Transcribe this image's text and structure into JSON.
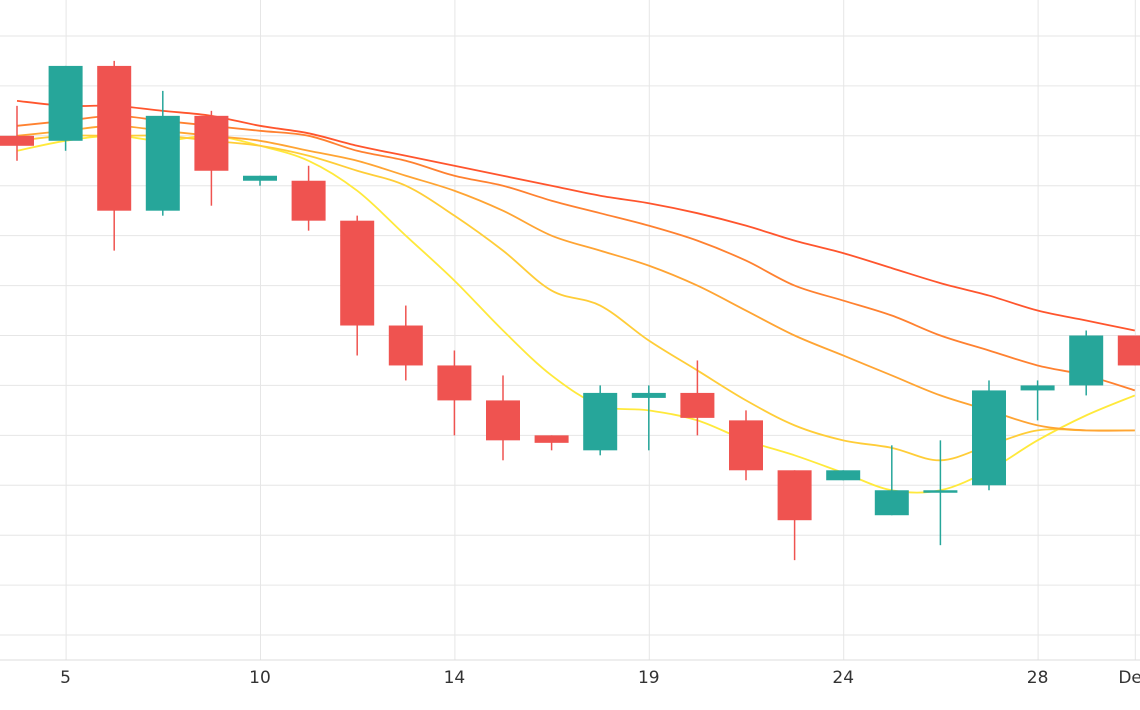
{
  "chart_data": {
    "type": "candlestick",
    "title": "",
    "xlabel": "",
    "ylabel": "",
    "x_tick_labels": [
      "5",
      "10",
      "14",
      "19",
      "24",
      "28",
      "Dec"
    ],
    "x_tick_index": [
      1,
      5,
      9,
      13,
      17,
      21,
      23
    ],
    "grid": true,
    "ylim": [
      0,
      13
    ],
    "y_gridlines": [
      0.5,
      1.5,
      2.5,
      3.5,
      4.5,
      5.5,
      6.5,
      7.5,
      8.5,
      9.5,
      10.5,
      11.5,
      12.5
    ],
    "candles": [
      {
        "o": 10.5,
        "h": 11.1,
        "l": 10.0,
        "c": 10.3
      },
      {
        "o": 10.4,
        "h": 11.9,
        "l": 10.2,
        "c": 11.9
      },
      {
        "o": 11.9,
        "h": 12.0,
        "l": 8.2,
        "c": 9.0
      },
      {
        "o": 9.0,
        "h": 11.4,
        "l": 8.9,
        "c": 10.9
      },
      {
        "o": 10.9,
        "h": 11.0,
        "l": 9.1,
        "c": 9.8
      },
      {
        "o": 9.6,
        "h": 9.7,
        "l": 9.5,
        "c": 9.7
      },
      {
        "o": 9.6,
        "h": 9.9,
        "l": 8.6,
        "c": 8.8
      },
      {
        "o": 8.8,
        "h": 8.9,
        "l": 6.1,
        "c": 6.7
      },
      {
        "o": 6.7,
        "h": 7.1,
        "l": 5.6,
        "c": 5.9
      },
      {
        "o": 5.9,
        "h": 6.2,
        "l": 4.5,
        "c": 5.2
      },
      {
        "o": 5.2,
        "h": 5.7,
        "l": 4.0,
        "c": 4.4
      },
      {
        "o": 4.5,
        "h": 4.5,
        "l": 4.2,
        "c": 4.35
      },
      {
        "o": 4.2,
        "h": 5.5,
        "l": 4.1,
        "c": 5.35
      },
      {
        "o": 5.25,
        "h": 5.5,
        "l": 4.2,
        "c": 5.35
      },
      {
        "o": 5.35,
        "h": 6.0,
        "l": 4.5,
        "c": 4.85
      },
      {
        "o": 4.8,
        "h": 5.0,
        "l": 3.6,
        "c": 3.8
      },
      {
        "o": 3.8,
        "h": 3.8,
        "l": 2.0,
        "c": 2.8
      },
      {
        "o": 3.6,
        "h": 3.8,
        "l": 3.6,
        "c": 3.8
      },
      {
        "o": 2.9,
        "h": 4.3,
        "l": 2.9,
        "c": 3.4
      },
      {
        "o": 3.4,
        "h": 4.4,
        "l": 2.3,
        "c": 3.4
      },
      {
        "o": 3.5,
        "h": 5.6,
        "l": 3.4,
        "c": 5.4
      },
      {
        "o": 5.4,
        "h": 5.6,
        "l": 4.8,
        "c": 5.5
      },
      {
        "o": 5.5,
        "h": 6.6,
        "l": 5.3,
        "c": 6.5
      },
      {
        "o": 6.5,
        "h": 6.5,
        "l": 5.9,
        "c": 5.9
      }
    ],
    "moving_averages": [
      {
        "color": "#ffe93b",
        "values": [
          10.2,
          10.4,
          10.5,
          10.4,
          10.5,
          10.3,
          10.0,
          9.4,
          8.5,
          7.6,
          6.6,
          5.7,
          5.1,
          5.0,
          4.8,
          4.4,
          4.1,
          3.75,
          3.4,
          3.4,
          3.8,
          4.4,
          4.9,
          5.3
        ]
      },
      {
        "color": "#ffcd38",
        "values": [
          10.4,
          10.5,
          10.5,
          10.5,
          10.4,
          10.3,
          10.1,
          9.8,
          9.5,
          8.9,
          8.2,
          7.4,
          7.1,
          6.4,
          5.8,
          5.2,
          4.7,
          4.4,
          4.25,
          4.0,
          4.3,
          4.6,
          4.6,
          4.6
        ]
      },
      {
        "color": "#ffa433",
        "values": [
          10.5,
          10.6,
          10.7,
          10.6,
          10.5,
          10.4,
          10.2,
          10.0,
          9.7,
          9.4,
          9.0,
          8.5,
          8.2,
          7.9,
          7.5,
          7.0,
          6.5,
          6.1,
          5.7,
          5.3,
          5.0,
          4.7,
          4.6,
          4.6
        ]
      },
      {
        "color": "#ff8130",
        "values": [
          10.7,
          10.8,
          10.9,
          10.8,
          10.7,
          10.6,
          10.5,
          10.2,
          10.0,
          9.7,
          9.5,
          9.2,
          8.95,
          8.7,
          8.4,
          8.0,
          7.5,
          7.2,
          6.9,
          6.5,
          6.2,
          5.9,
          5.7,
          5.4
        ]
      },
      {
        "color": "#ff552d",
        "values": [
          11.2,
          11.1,
          11.1,
          11.0,
          10.9,
          10.7,
          10.55,
          10.3,
          10.1,
          9.9,
          9.7,
          9.5,
          9.3,
          9.15,
          8.95,
          8.7,
          8.4,
          8.15,
          7.85,
          7.55,
          7.3,
          7.0,
          6.8,
          6.6
        ]
      }
    ],
    "colors": {
      "up": "#26a69a",
      "down": "#ef5350",
      "grid": "#e6e6e6",
      "axis_text": "#333333"
    }
  }
}
